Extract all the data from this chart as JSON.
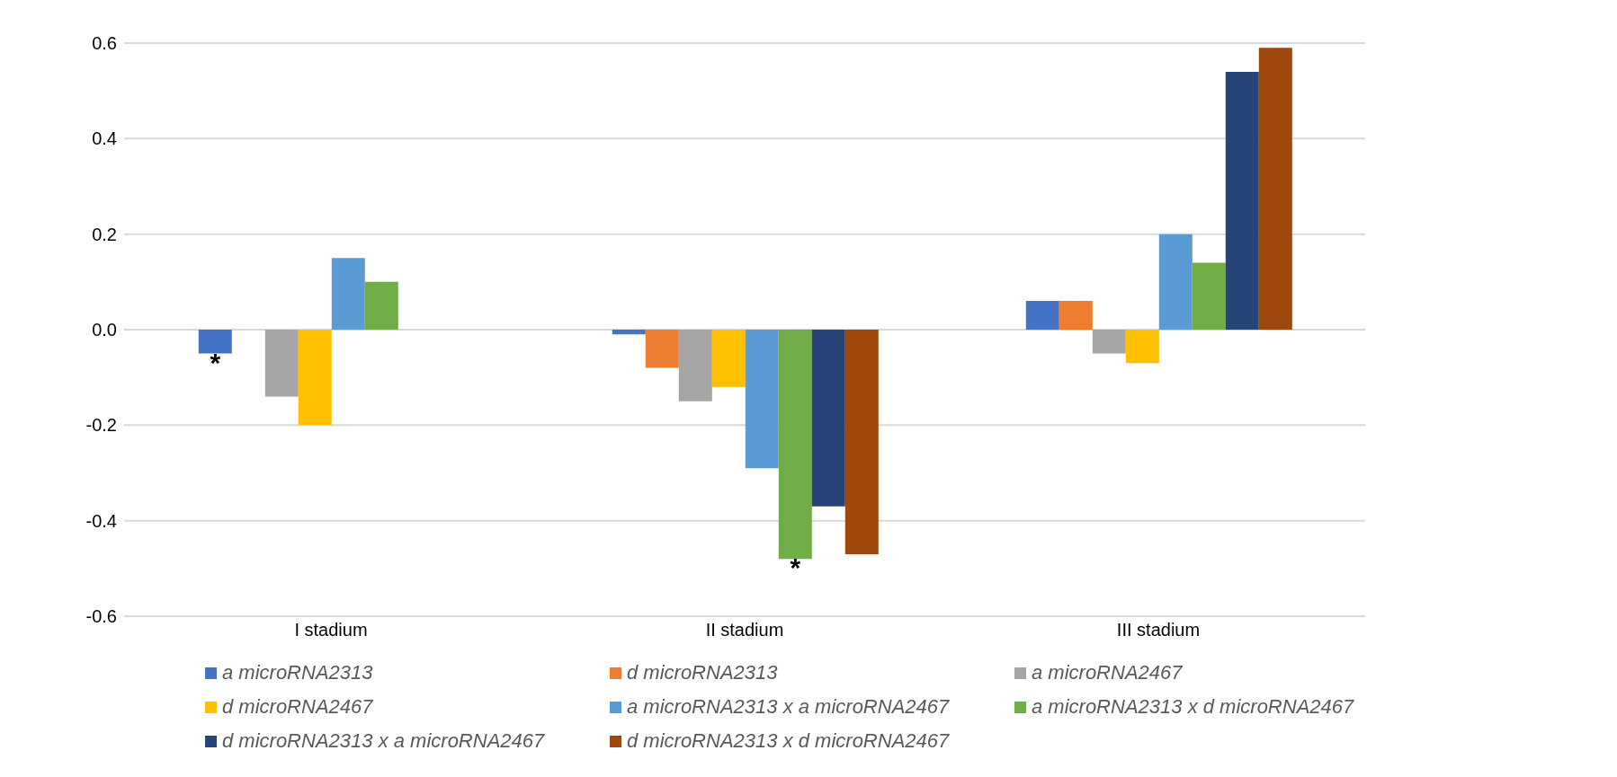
{
  "chart_data": {
    "type": "bar",
    "categories": [
      "I stadium",
      "II stadium",
      "III stadium"
    ],
    "series": [
      {
        "name": "a microRNA2313",
        "color": "#4472c4",
        "values": [
          -0.05,
          -0.01,
          0.06
        ],
        "value_labels": [
          "*",
          null,
          null
        ]
      },
      {
        "name": "d microRNA2313",
        "color": "#ed7d31",
        "values": [
          0,
          -0.08,
          0.06
        ]
      },
      {
        "name": "a microRNA2467",
        "color": "#a5a5a5",
        "values": [
          -0.14,
          -0.15,
          -0.05
        ]
      },
      {
        "name": "d microRNA2467",
        "color": "#ffc000",
        "values": [
          -0.2,
          -0.12,
          -0.07
        ]
      },
      {
        "name": "a microRNA2313 x a microRNA2467",
        "color": "#5b9bd5",
        "values": [
          0.15,
          -0.29,
          0.2
        ]
      },
      {
        "name": "a microRNA2313 x d microRNA2467",
        "color": "#70ad47",
        "values": [
          0.1,
          -0.48,
          0.14
        ],
        "value_labels": [
          null,
          "*",
          null
        ]
      },
      {
        "name": "d microRNA2313 x a microRNA2467",
        "color": "#264478",
        "values": [
          0,
          -0.37,
          0.54
        ]
      },
      {
        "name": "d microRNA2313 x d microRNA2467",
        "color": "#9e480e",
        "values": [
          0,
          -0.47,
          0.59
        ]
      }
    ],
    "ylim": [
      -0.6,
      0.6
    ],
    "yticks": [
      -0.6,
      -0.4,
      -0.2,
      {
        "value": 0,
        "label": "0.0"
      },
      0.2,
      0.4,
      0.6
    ],
    "grid": "y",
    "legend": "bottom"
  }
}
